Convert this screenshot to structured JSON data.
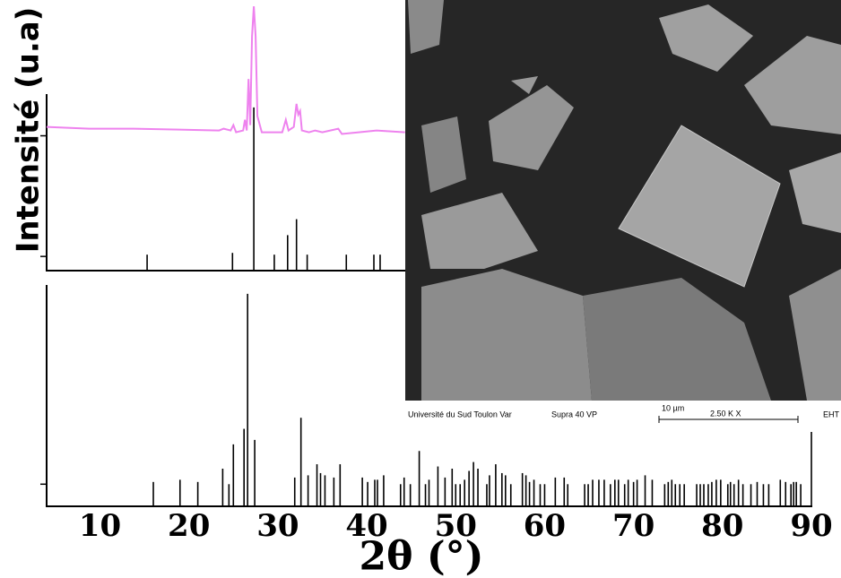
{
  "chart_data": [
    {
      "type": "line",
      "color": "#ee82ee",
      "xlim": [
        4,
        90
      ],
      "ylim": [
        0,
        150
      ],
      "x": [
        4.0,
        8.8,
        13.8,
        18.9,
        23.4,
        23.9,
        24.7,
        25.0,
        25.3,
        26.1,
        26.3,
        26.5,
        26.7,
        26.9,
        27.1,
        27.3,
        27.5,
        27.7,
        28.2,
        29.5,
        30.5,
        30.9,
        31.2,
        31.8,
        32.1,
        32.3,
        32.5,
        32.7,
        33.5,
        34.2,
        35.0,
        36.8,
        37.2,
        39.1,
        41.1,
        44.3
      ],
      "values": [
        81,
        80,
        80,
        79.5,
        79,
        80,
        79,
        82,
        78,
        79,
        85,
        79,
        108,
        82,
        132,
        149,
        132,
        87,
        78,
        78,
        78,
        85,
        79,
        81,
        94,
        88,
        90,
        79,
        78,
        79,
        78,
        80,
        77,
        78,
        79,
        78
      ]
    },
    {
      "type": "stick",
      "color": "#000000",
      "xlim": [
        4,
        90
      ],
      "ylim": [
        0,
        150
      ],
      "yticks": [
        8,
        76
      ],
      "y_label": "Intensité (u.a)",
      "x": [
        15.3,
        24.9,
        27.3,
        29.6,
        31.1,
        32.1,
        33.3,
        37.7,
        40.8,
        41.5
      ],
      "values": [
        9,
        10,
        92,
        9,
        20,
        29,
        9,
        9,
        9,
        9
      ]
    },
    {
      "type": "stick",
      "color": "#000000",
      "xlim": [
        4,
        90
      ],
      "ylim": [
        0,
        100
      ],
      "yticks": [
        10
      ],
      "xticks": [
        10,
        20,
        30,
        40,
        50,
        60,
        70,
        80,
        90
      ],
      "x_label": "2θ (°)",
      "x": [
        16.0,
        19.0,
        21.0,
        23.8,
        24.5,
        25.0,
        26.2,
        26.6,
        27.4,
        31.9,
        32.6,
        33.4,
        34.4,
        34.8,
        35.3,
        36.3,
        37.0,
        39.5,
        40.1,
        40.9,
        41.2,
        41.9,
        43.8,
        44.2,
        44.9,
        45.9,
        46.6,
        47.0,
        48.0,
        48.8,
        49.6,
        50.0,
        50.5,
        51.0,
        51.5,
        52.0,
        52.5,
        53.5,
        53.8,
        54.5,
        55.2,
        55.6,
        56.2,
        57.5,
        57.9,
        58.3,
        58.8,
        59.5,
        60.0,
        61.2,
        62.2,
        62.6,
        64.5,
        64.9,
        65.4,
        66.1,
        66.7,
        67.4,
        67.9,
        68.3,
        69.0,
        69.4,
        70.0,
        70.4,
        71.3,
        72.1,
        73.5,
        73.9,
        74.3,
        74.7,
        75.2,
        75.7,
        77.1,
        77.5,
        77.9,
        78.4,
        78.8,
        79.3,
        79.8,
        80.6,
        80.9,
        81.3,
        81.8,
        82.3,
        83.2,
        83.9,
        84.6,
        85.2,
        86.5,
        87.1,
        87.7,
        88.0,
        88.3,
        88.8,
        90.0
      ],
      "values": [
        11,
        12,
        11,
        17,
        10,
        28,
        35,
        96,
        30,
        13,
        40,
        14,
        19,
        15,
        14,
        13,
        19,
        13,
        11,
        12,
        12,
        14,
        10,
        13,
        10,
        25,
        10,
        12,
        18,
        13,
        17,
        10,
        10,
        12,
        16,
        20,
        17,
        10,
        14,
        19,
        15,
        14,
        10,
        15,
        14,
        11,
        12,
        10,
        10,
        13,
        13,
        10,
        10,
        10,
        12,
        12,
        12,
        10,
        12,
        12,
        10,
        12,
        11,
        12,
        14,
        12,
        10,
        11,
        12,
        10,
        10,
        10,
        10,
        10,
        10,
        10,
        11,
        12,
        12,
        10,
        11,
        10,
        12,
        10,
        10,
        11,
        10,
        10,
        12,
        11,
        10,
        11,
        11,
        10,
        34
      ]
    }
  ],
  "sem_image": {
    "institution": "Université du Sud Toulon Var",
    "instrument": "Supra 40 VP",
    "scale": "10 µm",
    "magnification": "2.50 K X",
    "detector": "EHT"
  }
}
